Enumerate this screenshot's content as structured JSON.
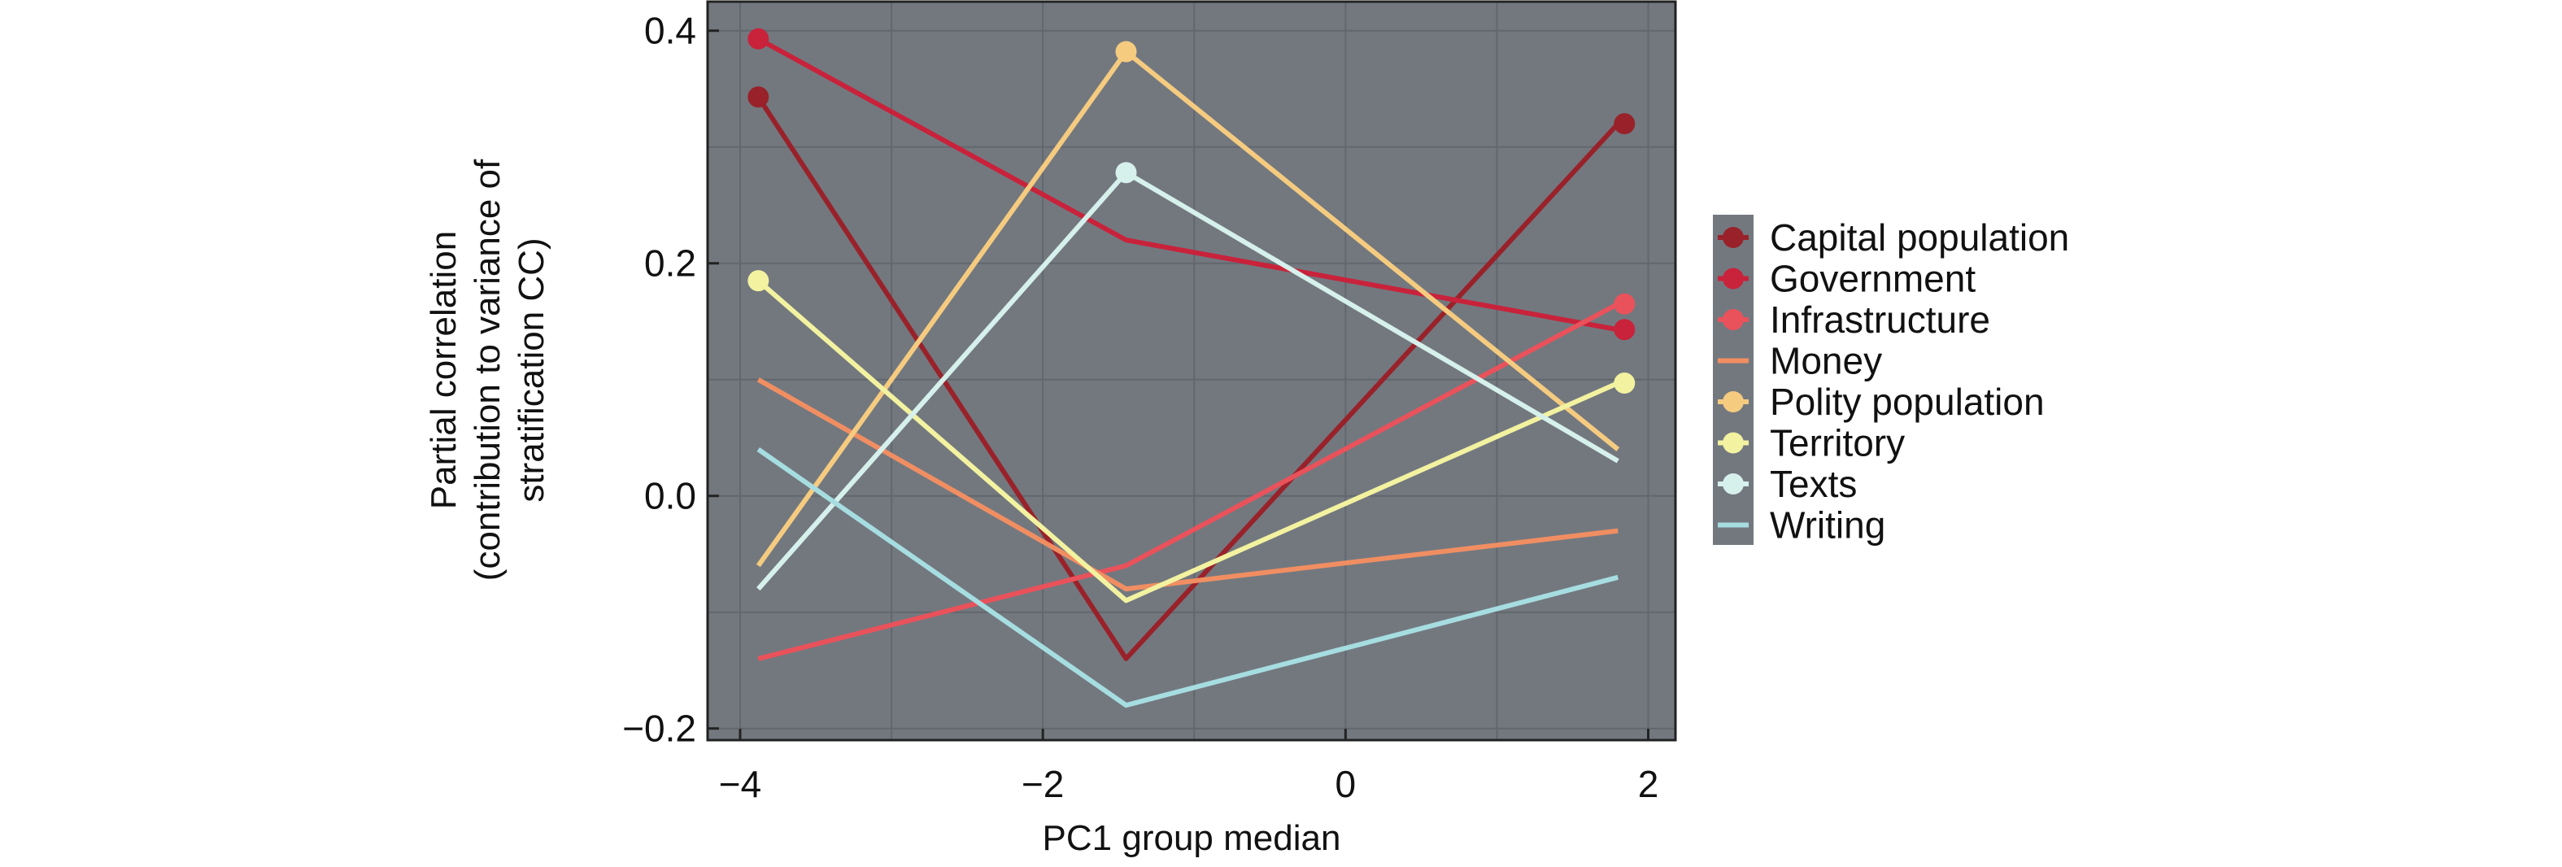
{
  "chart_data": {
    "type": "line",
    "title": "",
    "xlabel": "PC1 group median",
    "ylabel_lines": [
      "Partial correlation",
      "(contribution to variance of",
      "stratification CC)"
    ],
    "xlim": [
      -4.215,
      2.18
    ],
    "ylim": [
      -0.21,
      0.425
    ],
    "xticks": [
      -4,
      -2,
      0,
      2
    ],
    "xtick_labels": [
      "−4",
      "−2",
      "0",
      "2"
    ],
    "yticks": [
      -0.2,
      0.0,
      0.2,
      0.4
    ],
    "ytick_labels": [
      "−0.2",
      "0.0",
      "0.2",
      "0.4"
    ],
    "grid": true,
    "legend_position": "right",
    "background": "#73787f",
    "x": [
      -3.88,
      -1.45,
      1.8
    ],
    "series": [
      {
        "name": "Capital population",
        "color": "#99222a",
        "values": [
          0.343,
          -0.14,
          0.32
        ],
        "markers": [
          true,
          false,
          true
        ]
      },
      {
        "name": "Government",
        "color": "#c9223b",
        "values": [
          0.393,
          0.22,
          0.143
        ],
        "markers": [
          true,
          false,
          true
        ]
      },
      {
        "name": "Infrastructure",
        "color": "#e9525b",
        "values": [
          -0.14,
          -0.06,
          0.165
        ],
        "markers": [
          false,
          false,
          true
        ]
      },
      {
        "name": "Money",
        "color": "#f08e62",
        "values": [
          0.1,
          -0.08,
          -0.03
        ],
        "markers": [
          false,
          false,
          false
        ]
      },
      {
        "name": "Polity population",
        "color": "#f5cb80",
        "values": [
          -0.06,
          0.382,
          0.04
        ],
        "markers": [
          false,
          true,
          false
        ]
      },
      {
        "name": "Territory",
        "color": "#f2f2a0",
        "values": [
          0.185,
          -0.09,
          0.097
        ],
        "markers": [
          true,
          false,
          true
        ]
      },
      {
        "name": "Texts",
        "color": "#d6f0ec",
        "values": [
          -0.08,
          0.278,
          0.03
        ],
        "markers": [
          false,
          true,
          false
        ]
      },
      {
        "name": "Writing",
        "color": "#a6dde1",
        "values": [
          0.04,
          -0.18,
          -0.07
        ],
        "markers": [
          false,
          false,
          false
        ]
      }
    ]
  }
}
